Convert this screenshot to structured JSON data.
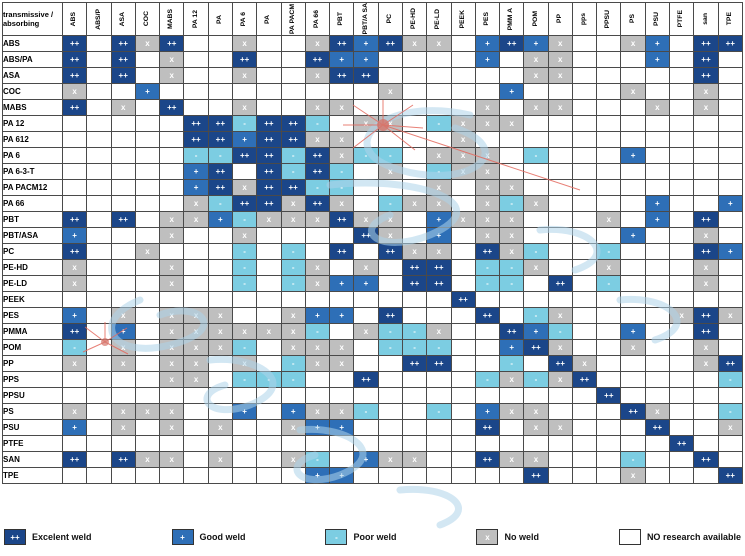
{
  "corner": {
    "line1": "transmissive /",
    "line2": "absorbing"
  },
  "legend": {
    "items": [
      {
        "code": "E",
        "symbol": "++",
        "label": "Excelent weld",
        "color": "#1b4689"
      },
      {
        "code": "G",
        "symbol": "+",
        "label": "Good weld",
        "color": "#2e6fb7"
      },
      {
        "code": "P",
        "symbol": "-",
        "label": "Poor weld",
        "color": "#7ccde2"
      },
      {
        "code": "N",
        "symbol": "x",
        "label": "No weld",
        "color": "#bfbfbf"
      },
      {
        "code": "",
        "symbol": "",
        "label": "NO research available",
        "color": "#ffffff"
      }
    ]
  },
  "chart_data": {
    "type": "heatmap",
    "title": "Plastics laser welding compatibility matrix",
    "value_legend": {
      "E": "++ Excelent weld",
      "G": "+ Good weld",
      "P": "- Poor weld",
      "N": "x No weld",
      "": "NO research available"
    },
    "columns": [
      "ABS",
      "ABS/P",
      "ASA",
      "COC",
      "MABS",
      "PA 12",
      "PA",
      "PA 6",
      "PA",
      "PA PACM",
      "PA 66",
      "PBT",
      "PBT/A SA",
      "PC",
      "PE-HD",
      "PE-LD",
      "PEEK",
      "PES",
      "PMM A",
      "POM",
      "PP",
      "pps",
      "PPSU",
      "PS",
      "PSU",
      "PTFE",
      "san",
      "TPE"
    ],
    "rows": [
      "ABS",
      "ABS/PA",
      "ASA",
      "COC",
      "MABS",
      "PA 12",
      "PA 612",
      "PA 6",
      "PA 6-3-T",
      "PA PACM12",
      "PA 66",
      "PBT",
      "PBT/ASA",
      "PC",
      "PE-HD",
      "PE-LD",
      "PEEK",
      "PES",
      "PMMA",
      "POM",
      "PP",
      "PPS",
      "PPSU",
      "PS",
      "PSU",
      "PTFE",
      "SAN",
      "TPE"
    ],
    "matrix": [
      [
        "E",
        "",
        "E",
        "N",
        "E",
        "",
        "",
        "N",
        "",
        "",
        "N",
        "E",
        "G",
        "E",
        "N",
        "N",
        "",
        "G",
        "E",
        "G",
        "N",
        "",
        "",
        "N",
        "G",
        "",
        "E",
        "E"
      ],
      [
        "E",
        "",
        "E",
        "",
        "N",
        "",
        "",
        "E",
        "",
        "",
        "E",
        "G",
        "G",
        "",
        "",
        "",
        "",
        "G",
        "",
        "N",
        "N",
        "",
        "",
        "",
        "G",
        "",
        "E",
        ""
      ],
      [
        "E",
        "",
        "E",
        "",
        "N",
        "",
        "",
        "N",
        "",
        "",
        "N",
        "E",
        "E",
        "",
        "",
        "",
        "",
        "",
        "",
        "N",
        "N",
        "",
        "",
        "",
        "",
        "",
        "E",
        ""
      ],
      [
        "N",
        "",
        "",
        "G",
        "",
        "",
        "",
        "",
        "",
        "",
        "",
        "",
        "",
        "N",
        "",
        "",
        "",
        "",
        "G",
        "",
        "",
        "",
        "",
        "N",
        "",
        "",
        "N",
        ""
      ],
      [
        "E",
        "",
        "N",
        "",
        "E",
        "",
        "",
        "N",
        "",
        "",
        "N",
        "N",
        "",
        "",
        "",
        "",
        "",
        "N",
        "",
        "N",
        "N",
        "",
        "",
        "",
        "N",
        "",
        "N",
        ""
      ],
      [
        "",
        "",
        "",
        "",
        "",
        "E",
        "E",
        "P",
        "E",
        "E",
        "P",
        "",
        "N",
        "N",
        "",
        "P",
        "N",
        "N",
        "N",
        "",
        "",
        "",
        "",
        "",
        "",
        "",
        "",
        ""
      ],
      [
        "",
        "",
        "",
        "",
        "",
        "E",
        "E",
        "G",
        "E",
        "E",
        "N",
        "N",
        "",
        "",
        "",
        "",
        "N",
        "",
        "",
        "",
        "",
        "",
        "",
        "",
        "",
        "",
        "",
        ""
      ],
      [
        "",
        "",
        "",
        "",
        "",
        "P",
        "P",
        "E",
        "E",
        "P",
        "E",
        "N",
        "P",
        "P",
        "",
        "N",
        "N",
        "N",
        "",
        "P",
        "",
        "",
        "",
        "G",
        "",
        "",
        "",
        ""
      ],
      [
        "",
        "",
        "",
        "",
        "",
        "G",
        "E",
        "",
        "E",
        "P",
        "E",
        "P",
        "",
        "N",
        "",
        "P",
        "N",
        "N",
        "",
        "",
        "",
        "",
        "",
        "",
        "",
        "",
        "",
        ""
      ],
      [
        "",
        "",
        "",
        "",
        "",
        "G",
        "E",
        "N",
        "E",
        "E",
        "P",
        "P",
        "",
        "",
        "",
        "N",
        "",
        "N",
        "N",
        "",
        "",
        "",
        "",
        "",
        "",
        "",
        "",
        ""
      ],
      [
        "",
        "",
        "",
        "",
        "",
        "N",
        "P",
        "E",
        "E",
        "N",
        "E",
        "N",
        "",
        "P",
        "N",
        "N",
        "",
        "N",
        "P",
        "N",
        "",
        "",
        "",
        "",
        "G",
        "",
        "",
        "G"
      ],
      [
        "E",
        "",
        "E",
        "",
        "N",
        "N",
        "G",
        "P",
        "N",
        "N",
        "N",
        "E",
        "N",
        "N",
        "",
        "G",
        "N",
        "N",
        "N",
        "",
        "",
        "",
        "N",
        "",
        "G",
        "",
        "E",
        ""
      ],
      [
        "G",
        "",
        "",
        "",
        "N",
        "",
        "",
        "N",
        "",
        "",
        "",
        "",
        "E",
        "N",
        "",
        "G",
        "",
        "N",
        "N",
        "",
        "",
        "",
        "",
        "G",
        "",
        "",
        "N",
        ""
      ],
      [
        "E",
        "",
        "",
        "N",
        "",
        "",
        "",
        "P",
        "",
        "P",
        "",
        "E",
        "",
        "E",
        "N",
        "N",
        "",
        "E",
        "N",
        "P",
        "",
        "",
        "P",
        "",
        "",
        "",
        "E",
        "G"
      ],
      [
        "N",
        "",
        "",
        "",
        "N",
        "",
        "",
        "P",
        "",
        "P",
        "N",
        "",
        "N",
        "",
        "E",
        "E",
        "",
        "P",
        "P",
        "N",
        "",
        "",
        "N",
        "",
        "",
        "",
        "N",
        ""
      ],
      [
        "N",
        "",
        "",
        "",
        "N",
        "",
        "",
        "P",
        "",
        "P",
        "N",
        "G",
        "G",
        "",
        "E",
        "E",
        "",
        "P",
        "P",
        "",
        "E",
        "",
        "P",
        "",
        "",
        "",
        "N",
        ""
      ],
      [
        "",
        "",
        "",
        "",
        "",
        "",
        "",
        "",
        "",
        "",
        "",
        "",
        "",
        "",
        "",
        "",
        "E",
        "",
        "",
        "",
        "",
        "",
        "",
        "",
        "",
        "",
        "",
        ""
      ],
      [
        "G",
        "",
        "N",
        "",
        "N",
        "N",
        "N",
        "",
        "",
        "N",
        "G",
        "G",
        "",
        "E",
        "",
        "",
        "",
        "E",
        "",
        "P",
        "N",
        "",
        "",
        "",
        "",
        "N",
        "E",
        "N"
      ],
      [
        "E",
        "",
        "G",
        "",
        "N",
        "N",
        "N",
        "N",
        "N",
        "N",
        "P",
        "",
        "N",
        "P",
        "P",
        "N",
        "",
        "",
        "E",
        "G",
        "P",
        "",
        "",
        "G",
        "",
        "",
        "E",
        ""
      ],
      [
        "P",
        "",
        "N",
        "",
        "N",
        "N",
        "N",
        "P",
        "",
        "N",
        "N",
        "N",
        "",
        "P",
        "P",
        "P",
        "",
        "",
        "G",
        "E",
        "N",
        "",
        "",
        "N",
        "",
        "",
        "N",
        ""
      ],
      [
        "N",
        "",
        "N",
        "",
        "N",
        "N",
        "",
        "N",
        "",
        "P",
        "N",
        "N",
        "",
        "",
        "E",
        "E",
        "",
        "",
        "P",
        "",
        "E",
        "N",
        "",
        "",
        "",
        "",
        "N",
        "E"
      ],
      [
        "",
        "",
        "",
        "",
        "N",
        "N",
        "",
        "P",
        "P",
        "P",
        "",
        "",
        "E",
        "",
        "",
        "",
        "",
        "P",
        "N",
        "P",
        "N",
        "E",
        "",
        "",
        "",
        "",
        "",
        "P"
      ],
      [
        "",
        "",
        "",
        "",
        "",
        "",
        "",
        "",
        "",
        "",
        "",
        "",
        "",
        "",
        "",
        "",
        "",
        "",
        "",
        "",
        "",
        "",
        "E",
        "",
        "",
        "",
        "",
        ""
      ],
      [
        "N",
        "",
        "N",
        "N",
        "N",
        "",
        "",
        "G",
        "",
        "G",
        "N",
        "N",
        "P",
        "",
        "",
        "P",
        "",
        "G",
        "N",
        "N",
        "",
        "",
        "",
        "E",
        "N",
        "",
        "",
        "P"
      ],
      [
        "G",
        "",
        "N",
        "",
        "N",
        "",
        "N",
        "",
        "",
        "N",
        "G",
        "G",
        "",
        "",
        "",
        "",
        "",
        "E",
        "",
        "N",
        "N",
        "",
        "",
        "",
        "E",
        "",
        "",
        "N"
      ],
      [
        "",
        "",
        "",
        "",
        "",
        "",
        "",
        "",
        "",
        "",
        "",
        "",
        "",
        "",
        "",
        "",
        "",
        "",
        "",
        "",
        "",
        "",
        "",
        "",
        "",
        "E",
        "",
        ""
      ],
      [
        "E",
        "",
        "E",
        "N",
        "N",
        "",
        "N",
        "",
        "",
        "N",
        "P",
        "",
        "G",
        "N",
        "N",
        "",
        "",
        "E",
        "N",
        "N",
        "",
        "",
        "",
        "P",
        "",
        "",
        "E",
        ""
      ],
      [
        "",
        "",
        "",
        "",
        "",
        "",
        "",
        "",
        "",
        "",
        "G",
        "G",
        "",
        "",
        "",
        "",
        "",
        "",
        "",
        "E",
        "",
        "",
        "",
        "N",
        "",
        "",
        "",
        "E"
      ]
    ]
  }
}
